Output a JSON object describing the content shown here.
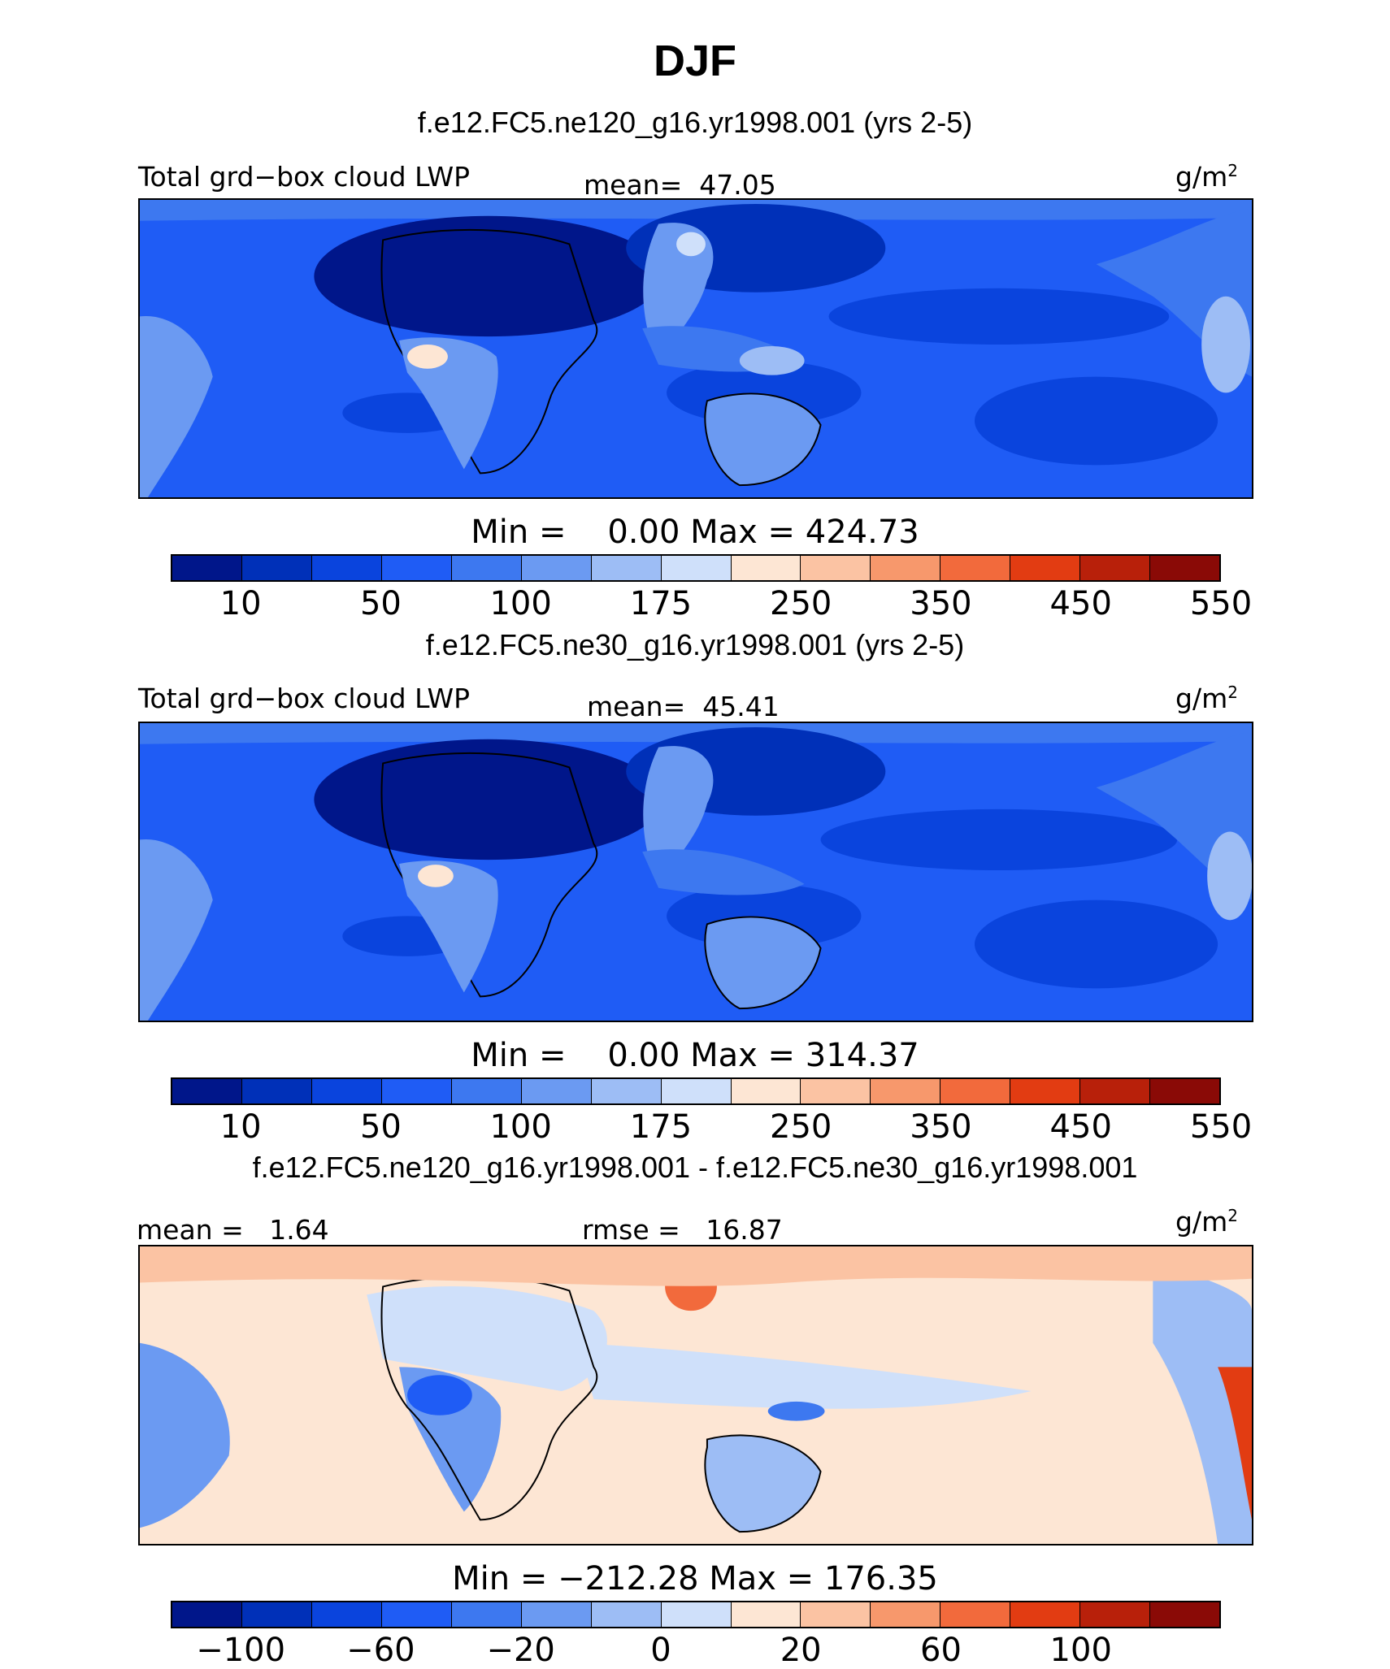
{
  "figure": {
    "title": "DJF"
  },
  "panels": [
    {
      "subtitle": "f.e12.FC5.ne120_g16.yr1998.001 (yrs 2-5)",
      "left_label": "Total grd−box cloud LWP",
      "center_label": "mean=  47.05",
      "unit": "g/m",
      "unit_sup": "2",
      "minmax": "Min =    0.00 Max = 424.73",
      "colorbar_ticks": [
        "10",
        "50",
        "100",
        "175",
        "250",
        "350",
        "450",
        "550"
      ]
    },
    {
      "subtitle": "f.e12.FC5.ne30_g16.yr1998.001 (yrs 2-5)",
      "left_label": "Total grd−box cloud LWP",
      "center_label": "mean=  45.41",
      "unit": "g/m",
      "unit_sup": "2",
      "minmax": "Min =    0.00 Max = 314.37",
      "colorbar_ticks": [
        "10",
        "50",
        "100",
        "175",
        "250",
        "350",
        "450",
        "550"
      ]
    },
    {
      "subtitle": "f.e12.FC5.ne120_g16.yr1998.001 - f.e12.FC5.ne30_g16.yr1998.001",
      "left_label": "mean =   1.64",
      "center_label": "rmse =   16.87",
      "unit": "g/m",
      "unit_sup": "2",
      "minmax": "Min = −212.28 Max = 176.35",
      "colorbar_ticks": [
        "−100",
        "−60",
        "−20",
        "0",
        "20",
        "60",
        "100"
      ]
    }
  ],
  "chart_data": [
    {
      "type": "heatmap",
      "title": "f.e12.FC5.ne120_g16.yr1998.001 (yrs 2-5)",
      "variable": "Total grd−box cloud LWP",
      "units": "g/m2",
      "mean": 47.05,
      "min": 0.0,
      "max": 424.73,
      "levels": [
        10,
        25,
        50,
        75,
        100,
        125,
        175,
        200,
        250,
        300,
        350,
        400,
        450,
        500,
        550
      ],
      "colors": [
        "#00168a",
        "#0030b8",
        "#0a44dd",
        "#1f5cf5",
        "#3d78f0",
        "#6b9af2",
        "#9dbdf5",
        "#cfe0fa",
        "#fde6d4",
        "#fbc3a3",
        "#f7986c",
        "#f26a3c",
        "#e23c12",
        "#b8200a",
        "#8a0a06"
      ]
    },
    {
      "type": "heatmap",
      "title": "f.e12.FC5.ne30_g16.yr1998.001 (yrs 2-5)",
      "variable": "Total grd−box cloud LWP",
      "units": "g/m2",
      "mean": 45.41,
      "min": 0.0,
      "max": 314.37,
      "levels": [
        10,
        25,
        50,
        75,
        100,
        125,
        175,
        200,
        250,
        300,
        350,
        400,
        450,
        500,
        550
      ],
      "colors": [
        "#00168a",
        "#0030b8",
        "#0a44dd",
        "#1f5cf5",
        "#3d78f0",
        "#6b9af2",
        "#9dbdf5",
        "#cfe0fa",
        "#fde6d4",
        "#fbc3a3",
        "#f7986c",
        "#f26a3c",
        "#e23c12",
        "#b8200a",
        "#8a0a06"
      ]
    },
    {
      "type": "heatmap",
      "title": "f.e12.FC5.ne120_g16.yr1998.001 - f.e12.FC5.ne30_g16.yr1998.001",
      "variable": "difference",
      "units": "g/m2",
      "mean": 1.64,
      "rmse": 16.87,
      "min": -212.28,
      "max": 176.35,
      "levels": [
        -100,
        -80,
        -60,
        -40,
        -20,
        -10,
        0,
        10,
        20,
        40,
        60,
        80,
        100
      ],
      "colors": [
        "#00168a",
        "#0030b8",
        "#0a44dd",
        "#1f5cf5",
        "#3d78f0",
        "#6b9af2",
        "#9dbdf5",
        "#cfe0fa",
        "#fde6d4",
        "#fbc3a3",
        "#f7986c",
        "#f26a3c",
        "#e23c12",
        "#b8200a",
        "#8a0a06"
      ]
    }
  ]
}
